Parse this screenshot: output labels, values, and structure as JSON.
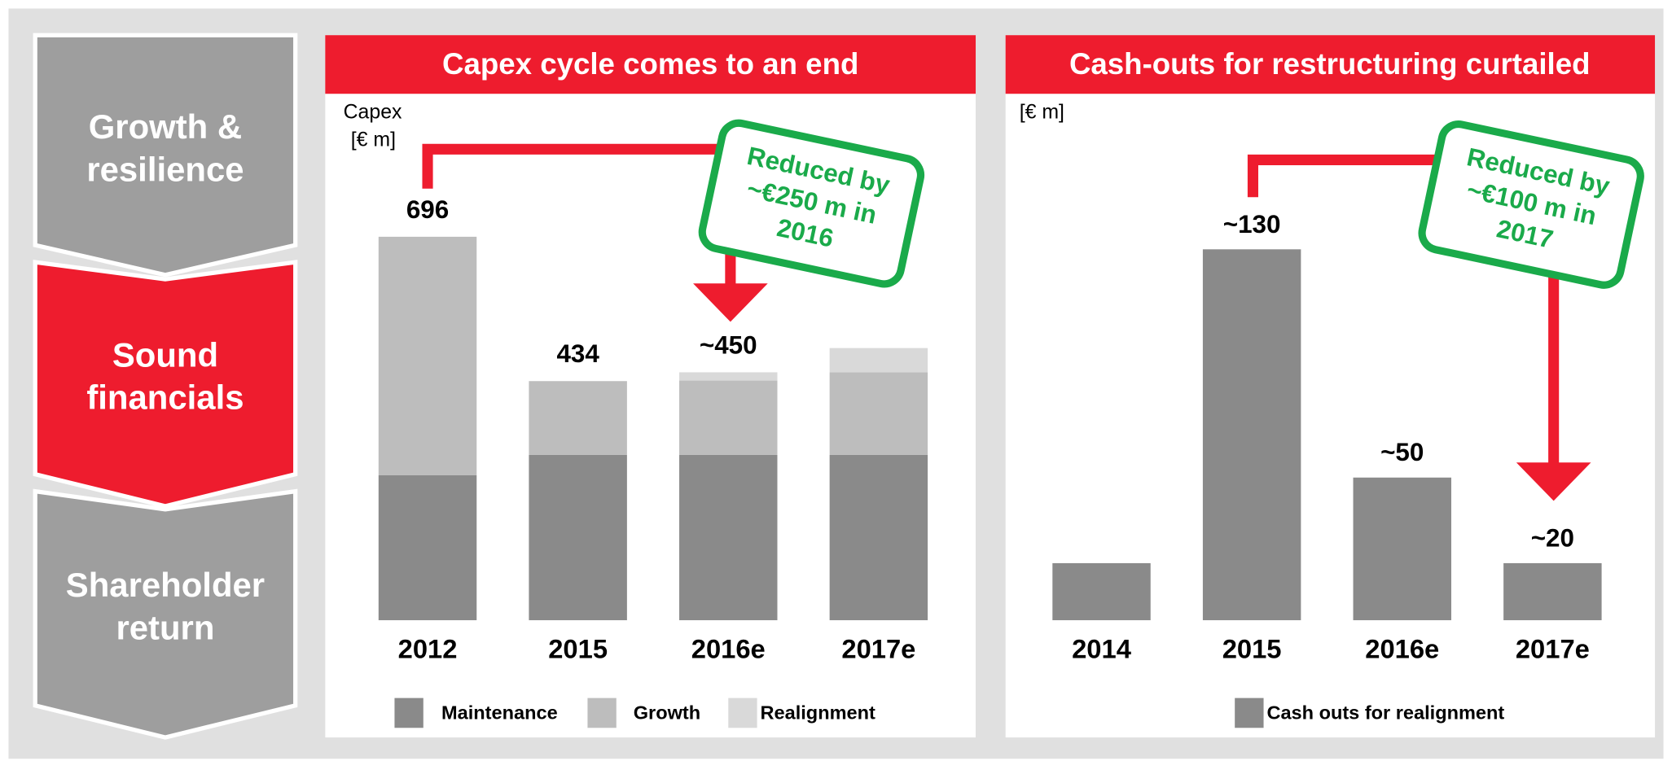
{
  "navigation": {
    "items": [
      [
        "Growth &",
        "resilience"
      ],
      [
        "Sound",
        "financials"
      ],
      [
        "Shareholder",
        "return"
      ]
    ],
    "active": 1
  },
  "chart_data": [
    {
      "type": "stacked_bar",
      "title": "Capex cycle comes to an end",
      "unit_label": [
        "Capex",
        "[€ m]"
      ],
      "categories": [
        "2012",
        "2015",
        "2016e",
        "2017e"
      ],
      "series": [
        {
          "name": "Maintenance",
          "color": "#8a8a8a",
          "values": [
            263,
            300,
            300,
            300
          ]
        },
        {
          "name": "Growth",
          "color": "#bdbdbd",
          "values": [
            433,
            134,
            135,
            150
          ]
        },
        {
          "name": "Realignment",
          "color": "#d9d9d9",
          "values": [
            null,
            null,
            15,
            44
          ]
        }
      ],
      "totals": [
        696,
        434,
        450,
        null
      ],
      "total_labels": [
        "696",
        "434",
        "~450",
        null
      ],
      "ylim": [
        0,
        800
      ],
      "annotation": [
        "Reduced by",
        "~€250 m in",
        "2016"
      ]
    },
    {
      "type": "bar",
      "title": "Cash-outs for restructuring curtailed",
      "unit_label": [
        "[€ m]"
      ],
      "categories": [
        "2014",
        "2015",
        "2016e",
        "2017e"
      ],
      "series": [
        {
          "name": "Cash outs for realignment",
          "color": "#8a8a8a",
          "values": [
            20,
            130,
            50,
            20
          ]
        }
      ],
      "value_labels": [
        null,
        "~130",
        "~50",
        "~20"
      ],
      "ylim": [
        0,
        150
      ],
      "annotation": [
        "Reduced by",
        "~€100 m in",
        "2017"
      ]
    }
  ]
}
